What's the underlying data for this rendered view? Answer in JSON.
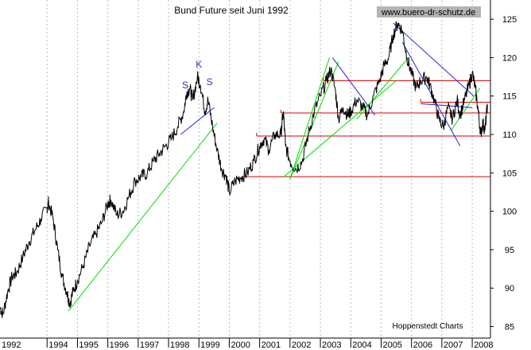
{
  "chart_data": {
    "type": "line",
    "title": "Bund Future seit Juni 1992",
    "watermark": "www.buero-dr-schutz.de",
    "credit": "Hoppenstedt Charts",
    "x_tick_labels": [
      "1992",
      "1994",
      "1995",
      "1996",
      "1997",
      "1998",
      "1999",
      "2000",
      "2001",
      "2002",
      "2003",
      "2004",
      "2005",
      "2006",
      "2007",
      "2008"
    ],
    "y_tick_labels": [
      85,
      90,
      95,
      100,
      105,
      110,
      115,
      120,
      125
    ],
    "xlim": [
      1992.45,
      2008.6
    ],
    "ylim": [
      83.5,
      127.5
    ],
    "grid": {
      "vertical": true,
      "horizontal": false
    },
    "series": [
      {
        "color": "#000000",
        "points": [
          [
            1992.45,
            87.5
          ],
          [
            1992.55,
            86.6
          ],
          [
            1992.7,
            89.5
          ],
          [
            1992.85,
            91.5
          ],
          [
            1993.0,
            92.0
          ],
          [
            1993.2,
            94.0
          ],
          [
            1993.4,
            96.0
          ],
          [
            1993.6,
            97.5
          ],
          [
            1993.8,
            99.0
          ],
          [
            1994.0,
            100.5
          ],
          [
            1994.05,
            101.2
          ],
          [
            1994.2,
            99.0
          ],
          [
            1994.35,
            95.0
          ],
          [
            1994.5,
            91.5
          ],
          [
            1994.65,
            89.5
          ],
          [
            1994.75,
            88.0
          ],
          [
            1994.85,
            89.5
          ],
          [
            1995.0,
            91.0
          ],
          [
            1995.2,
            93.0
          ],
          [
            1995.4,
            95.5
          ],
          [
            1995.6,
            97.0
          ],
          [
            1995.8,
            98.5
          ],
          [
            1996.0,
            101.0
          ],
          [
            1996.1,
            101.5
          ],
          [
            1996.3,
            99.5
          ],
          [
            1996.5,
            100.0
          ],
          [
            1996.7,
            102.0
          ],
          [
            1996.9,
            104.0
          ],
          [
            1997.1,
            104.5
          ],
          [
            1997.3,
            105.0
          ],
          [
            1997.5,
            106.5
          ],
          [
            1997.7,
            107.5
          ],
          [
            1997.9,
            108.5
          ],
          [
            1998.1,
            109.5
          ],
          [
            1998.3,
            111.0
          ],
          [
            1998.5,
            113.0
          ],
          [
            1998.6,
            115.5
          ],
          [
            1998.7,
            116.0
          ],
          [
            1998.8,
            114.5
          ],
          [
            1998.95,
            117.5
          ],
          [
            1999.05,
            116.5
          ],
          [
            1999.2,
            113.0
          ],
          [
            1999.3,
            114.5
          ],
          [
            1999.45,
            111.0
          ],
          [
            1999.6,
            108.0
          ],
          [
            1999.75,
            105.5
          ],
          [
            1999.9,
            104.5
          ],
          [
            2000.0,
            102.5
          ],
          [
            2000.2,
            104.0
          ],
          [
            2000.4,
            104.5
          ],
          [
            2000.6,
            105.0
          ],
          [
            2000.8,
            106.5
          ],
          [
            2001.0,
            108.5
          ],
          [
            2001.15,
            109.5
          ],
          [
            2001.3,
            108.0
          ],
          [
            2001.5,
            110.0
          ],
          [
            2001.7,
            110.0
          ],
          [
            2001.78,
            113.0
          ],
          [
            2001.85,
            108.5
          ],
          [
            2002.0,
            106.5
          ],
          [
            2002.2,
            105.5
          ],
          [
            2002.4,
            106.5
          ],
          [
            2002.6,
            110.0
          ],
          [
            2002.8,
            113.0
          ],
          [
            2003.0,
            115.0
          ],
          [
            2003.2,
            117.0
          ],
          [
            2003.35,
            118.5
          ],
          [
            2003.5,
            115.5
          ],
          [
            2003.6,
            112.0
          ],
          [
            2003.75,
            113.5
          ],
          [
            2003.9,
            112.5
          ],
          [
            2004.0,
            113.0
          ],
          [
            2004.2,
            114.5
          ],
          [
            2004.4,
            113.5
          ],
          [
            2004.55,
            112.5
          ],
          [
            2004.75,
            115.0
          ],
          [
            2004.95,
            117.0
          ],
          [
            2005.1,
            119.0
          ],
          [
            2005.25,
            120.0
          ],
          [
            2005.4,
            123.0
          ],
          [
            2005.55,
            124.5
          ],
          [
            2005.7,
            123.5
          ],
          [
            2005.85,
            120.0
          ],
          [
            2006.0,
            118.0
          ],
          [
            2006.15,
            116.0
          ],
          [
            2006.3,
            117.0
          ],
          [
            2006.5,
            117.5
          ],
          [
            2006.6,
            116.5
          ],
          [
            2006.75,
            114.5
          ],
          [
            2006.9,
            112.0
          ],
          [
            2007.05,
            111.0
          ],
          [
            2007.2,
            113.5
          ],
          [
            2007.35,
            112.0
          ],
          [
            2007.5,
            114.5
          ],
          [
            2007.6,
            112.5
          ],
          [
            2007.75,
            114.5
          ],
          [
            2007.9,
            116.5
          ],
          [
            2008.0,
            118.0
          ],
          [
            2008.1,
            116.0
          ],
          [
            2008.2,
            113.0
          ],
          [
            2008.28,
            110.0
          ],
          [
            2008.35,
            111.5
          ],
          [
            2008.42,
            110.5
          ],
          [
            2008.5,
            114.0
          ]
        ]
      }
    ],
    "trendlines": [
      {
        "color": "#00dd00",
        "from": [
          1994.7,
          87.0
        ],
        "to": [
          1999.6,
          111.5
        ]
      },
      {
        "color": "#00dd00",
        "from": [
          2002.0,
          104.2
        ],
        "to": [
          2003.3,
          120.0
        ]
      },
      {
        "color": "#00dd00",
        "from": [
          2002.0,
          104.2
        ],
        "to": [
          2003.6,
          119.5
        ]
      },
      {
        "color": "#00dd00",
        "from": [
          2001.8,
          104.5
        ],
        "to": [
          2005.5,
          117.0
        ]
      },
      {
        "color": "#00dd00",
        "from": [
          2004.2,
          112.0
        ],
        "to": [
          2005.9,
          120.0
        ]
      },
      {
        "color": "#00dd00",
        "from": [
          2007.3,
          110.5
        ],
        "to": [
          2008.25,
          116.0
        ]
      },
      {
        "color": "#2020e0",
        "from": [
          1998.4,
          110.0
        ],
        "to": [
          1999.5,
          113.5
        ]
      },
      {
        "color": "#2020e0",
        "from": [
          2003.4,
          120.0
        ],
        "to": [
          2004.8,
          112.5
        ]
      },
      {
        "color": "#2020e0",
        "from": [
          2005.4,
          124.5
        ],
        "to": [
          2008.05,
          115.0
        ]
      },
      {
        "color": "#2020e0",
        "from": [
          2005.7,
          122.0
        ],
        "to": [
          2007.6,
          108.5
        ]
      },
      {
        "color": "#2020e0",
        "from": [
          2006.3,
          114.0
        ],
        "to": [
          2008.0,
          113.5
        ]
      }
    ],
    "horizontal_lines": [
      {
        "color": "#e00000",
        "y": 104.5,
        "from": 2000.5,
        "to": 2008.6
      },
      {
        "color": "#e00000",
        "y": 109.8,
        "from": 2000.9,
        "to": 2008.6
      },
      {
        "color": "#e00000",
        "y": 112.8,
        "from": 2001.7,
        "to": 2008.6
      },
      {
        "color": "#e00000",
        "y": 117.0,
        "from": 2003.1,
        "to": 2008.6
      },
      {
        "color": "#e00000",
        "y": 114.2,
        "from": 2006.3,
        "to": 2008.6
      }
    ],
    "annotations": [
      {
        "text": "S",
        "x": 1998.55,
        "y": 116.0
      },
      {
        "text": "K",
        "x": 1999.0,
        "y": 118.7
      },
      {
        "text": "S",
        "x": 1999.35,
        "y": 116.4
      }
    ]
  }
}
